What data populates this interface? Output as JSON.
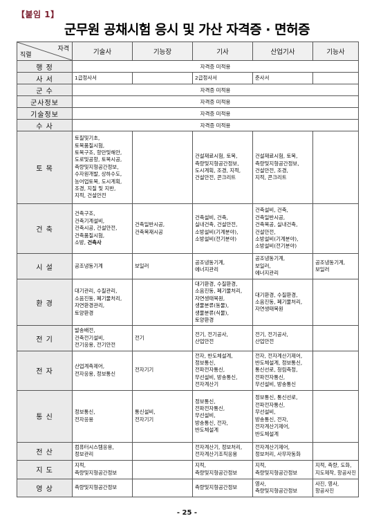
{
  "tag": "【붙임 1】",
  "title": "군무원 공채시험 응시 및 가산 자격증 · 면허증",
  "header": {
    "corner_top": "자격",
    "corner_bottom": "직렬",
    "columns": [
      "기술사",
      "기능장",
      "기사",
      "산업기사",
      "기능사"
    ]
  },
  "rows": [
    {
      "job": "행 정",
      "span": "자격증 미적용"
    },
    {
      "job": "사 서",
      "cells": [
        [
          "1급정사서"
        ],
        [],
        [
          "2급정사서"
        ],
        [
          "준사서"
        ],
        []
      ]
    },
    {
      "job": "군 수",
      "span": "자격증 미적용"
    },
    {
      "job": "군사정보",
      "span": "자격증 미적용"
    },
    {
      "job": "기술정보",
      "span": "자격증 미적용"
    },
    {
      "job": "수 사",
      "span": "자격증 미적용"
    },
    {
      "job": "토 목",
      "cells": [
        [
          "토질및기초,",
          "토목품질시험,",
          "토목구조, 항만및해안,",
          "도로및공항, 토목시공,",
          "측량및지형공간정보,",
          "수자원개발, 상하수도,",
          "농어업토목, 도시계획,",
          "조경, 지질 및 지반,",
          "지적, 건설안전"
        ],
        [],
        [
          "건설재료시험, 토목,",
          "측량및지형공간정보,",
          "도시계획, 조경, 지적,",
          "건설안전, 콘크리트"
        ],
        [
          "건설재료시험, 토목,",
          "측량및지형공간정보,",
          "건설안전, 조경,",
          "지적, 콘크리트"
        ],
        []
      ]
    },
    {
      "job": "건 축",
      "cells": [
        [
          "건축구조,",
          "건축기계설비,",
          "건축시공, 건설안전,",
          "건축품질시험,",
          "소방, 건축사"
        ],
        [
          "건축일반시공,",
          "건축목재시공"
        ],
        [
          "건축설비, 건축,",
          "실내건축, 건설안전,",
          "소방설비(기계분야),",
          "소방설비(전기분야)"
        ],
        [
          "건축설비, 건축,",
          "건축일반시공,",
          "건축목공, 실내건축,",
          "건설안전,",
          "소방설비(기계분야),",
          "소방설비(전기분야)"
        ],
        []
      ]
    },
    {
      "job": "시 설",
      "cells": [
        [
          "공조냉동기계"
        ],
        [
          "보일러"
        ],
        [
          "공조냉동기계,",
          "에너지관리"
        ],
        [
          "공조냉동기계,",
          "보일러,",
          "에너지관리"
        ],
        [
          "공조냉동기계,",
          "보일러"
        ]
      ]
    },
    {
      "job": "환 경",
      "cells": [
        [
          "대기관리, 수질관리,",
          "소음진동, 폐기물처리,",
          "자연환경관리,",
          "토양환경"
        ],
        [],
        [
          "대기환경, 수질환경,",
          "소음진동, 폐기물처리,",
          "자연생태복원,",
          "생물분류(동물),",
          "생물분류(식물),",
          "토양환경"
        ],
        [
          "대기환경, 수질환경,",
          "소음진동, 폐기물처리,",
          "자연생태복원"
        ],
        []
      ]
    },
    {
      "job": "전 기",
      "cells": [
        [
          "발송배전,",
          "건축전기설비,",
          "전기응용, 전기안전"
        ],
        [
          "전기"
        ],
        [
          "전기, 전기공사,",
          "산업안전"
        ],
        [
          "전기, 전기공사,",
          "산업안전"
        ],
        []
      ]
    },
    {
      "job": "전 자",
      "cells": [
        [
          "산업계측제어,",
          "전자응용, 정보통신"
        ],
        [
          "전자기기"
        ],
        [
          "전자, 반도체설계,",
          "정보통신,",
          "전파전자통신,",
          "무선설비, 방송통신,",
          "전자계산기"
        ],
        [
          "전자, 전자계산기제어,",
          "반도체설계, 정보통신,",
          "통신선로, 청림측정,",
          "전파전자통신,",
          "무선설비, 방송통신"
        ],
        []
      ]
    },
    {
      "job": "통 신",
      "cells": [
        [
          "정보통신,",
          "전자응용"
        ],
        [
          "통신설비,",
          "전자기기"
        ],
        [
          "정보통신,",
          "전파전자통신,",
          "무선설비,",
          "방송통신, 전자,",
          "반도체설계"
        ],
        [
          "정보통신, 통신선로,",
          "전파전자통신,",
          "무선설비,",
          "방송통신, 전자,",
          "전자계산기제어,",
          "반도체설계"
        ],
        []
      ]
    },
    {
      "job": "전 산",
      "cells": [
        [
          "컴퓨터시스템응용,",
          "정보관리"
        ],
        [],
        [
          "전자계산기, 정보처리,",
          "전자계산기조직응용"
        ],
        [
          "전자계산기제어,",
          "정보처리, 사무자동화"
        ],
        []
      ]
    },
    {
      "job": "지 도",
      "cells": [
        [
          "지적,",
          "측량및지형공간정보"
        ],
        [],
        [
          "지적,",
          "측량및지형공간정보"
        ],
        [
          "지적,",
          "측량및지형공간정보"
        ],
        [
          "지적, 측량, 도화,",
          "지도제작, 항공사진"
        ]
      ]
    },
    {
      "job": "영 상",
      "cells": [
        [
          "측량및지형공간정보"
        ],
        [],
        [
          "측량및지형공간정보"
        ],
        [
          "영사,",
          "측량및지형공간정보"
        ],
        [
          "사진, 영사,",
          "항공사진"
        ]
      ]
    }
  ],
  "bold_items": [
    "건축사"
  ],
  "page_number": "- 25 -"
}
